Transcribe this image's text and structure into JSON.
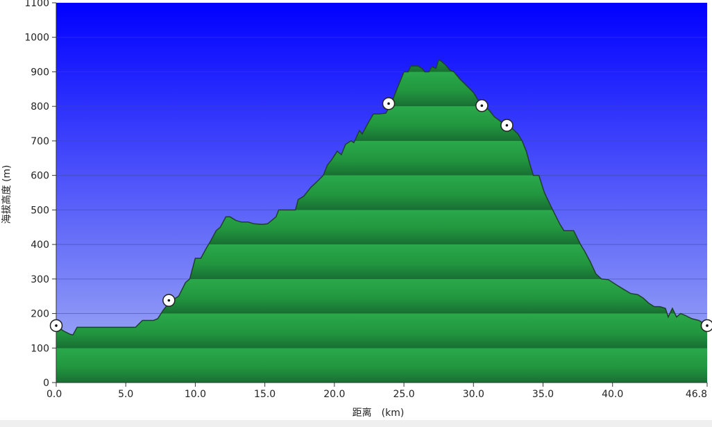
{
  "chart_data": {
    "type": "area",
    "title": "",
    "xlabel": "距离　(km)",
    "ylabel": "海拔高度 (m)",
    "xlim": [
      0,
      46.8
    ],
    "ylim": [
      0,
      1100
    ],
    "x_ticks": [
      {
        "value": 0,
        "label": "0.0"
      },
      {
        "value": 5,
        "label": "5.0"
      },
      {
        "value": 10,
        "label": "10.0"
      },
      {
        "value": 15,
        "label": "15.0"
      },
      {
        "value": 20,
        "label": "20.0"
      },
      {
        "value": 25,
        "label": "25.0"
      },
      {
        "value": 30,
        "label": "30.0"
      },
      {
        "value": 35,
        "label": "35.0"
      },
      {
        "value": 40,
        "label": "40.0"
      },
      {
        "value": 46.8,
        "label": "46.8"
      }
    ],
    "y_ticks": [
      {
        "value": 0,
        "label": "0"
      },
      {
        "value": 100,
        "label": "100"
      },
      {
        "value": 200,
        "label": "200"
      },
      {
        "value": 300,
        "label": "300"
      },
      {
        "value": 400,
        "label": "400"
      },
      {
        "value": 500,
        "label": "500"
      },
      {
        "value": 600,
        "label": "600"
      },
      {
        "value": 700,
        "label": "700"
      },
      {
        "value": 800,
        "label": "800"
      },
      {
        "value": 900,
        "label": "900"
      },
      {
        "value": 1000,
        "label": "1000"
      },
      {
        "value": 1100,
        "label": "1100"
      }
    ],
    "grid": true,
    "colors": {
      "fill_top": "#29a348",
      "fill_dark": "#1a7f3a",
      "outline": "#1f3f2a",
      "sky_top": "#0000ff",
      "sky_bottom": "#a7b4f4",
      "grid": "#3b4aa8"
    },
    "series": [
      {
        "values": [
          [
            0.0,
            165
          ],
          [
            0.5,
            150
          ],
          [
            1.0,
            140
          ],
          [
            1.2,
            138
          ],
          [
            1.5,
            160
          ],
          [
            2.0,
            160
          ],
          [
            3.0,
            160
          ],
          [
            4.0,
            160
          ],
          [
            5.0,
            160
          ],
          [
            5.7,
            160
          ],
          [
            6.2,
            180
          ],
          [
            7.0,
            180
          ],
          [
            7.3,
            185
          ],
          [
            7.7,
            210
          ],
          [
            8.2,
            235
          ],
          [
            8.8,
            250
          ],
          [
            9.3,
            290
          ],
          [
            9.6,
            300
          ],
          [
            10.0,
            360
          ],
          [
            10.4,
            360
          ],
          [
            10.8,
            390
          ],
          [
            11.1,
            410
          ],
          [
            11.5,
            440
          ],
          [
            11.8,
            450
          ],
          [
            12.2,
            480
          ],
          [
            12.5,
            480
          ],
          [
            12.9,
            470
          ],
          [
            13.3,
            465
          ],
          [
            13.8,
            465
          ],
          [
            14.2,
            460
          ],
          [
            14.8,
            458
          ],
          [
            15.2,
            460
          ],
          [
            15.5,
            470
          ],
          [
            15.8,
            480
          ],
          [
            16.0,
            500
          ],
          [
            16.5,
            500
          ],
          [
            17.2,
            500
          ],
          [
            17.4,
            530
          ],
          [
            17.8,
            540
          ],
          [
            18.3,
            565
          ],
          [
            18.7,
            580
          ],
          [
            19.2,
            600
          ],
          [
            19.5,
            630
          ],
          [
            19.8,
            645
          ],
          [
            20.2,
            670
          ],
          [
            20.5,
            660
          ],
          [
            20.8,
            690
          ],
          [
            21.2,
            700
          ],
          [
            21.4,
            695
          ],
          [
            21.8,
            730
          ],
          [
            22.0,
            720
          ],
          [
            22.4,
            750
          ],
          [
            22.8,
            778
          ],
          [
            23.2,
            778
          ],
          [
            23.7,
            780
          ],
          [
            24.1,
            810
          ],
          [
            24.5,
            850
          ],
          [
            24.8,
            880
          ],
          [
            25.0,
            900
          ],
          [
            25.3,
            900
          ],
          [
            25.5,
            917
          ],
          [
            26.0,
            917
          ],
          [
            26.3,
            910
          ],
          [
            26.5,
            900
          ],
          [
            26.8,
            900
          ],
          [
            27.0,
            915
          ],
          [
            27.3,
            910
          ],
          [
            27.5,
            935
          ],
          [
            27.7,
            930
          ],
          [
            28.0,
            920
          ],
          [
            28.3,
            905
          ],
          [
            28.6,
            900
          ],
          [
            29.0,
            880
          ],
          [
            29.5,
            860
          ],
          [
            30.0,
            840
          ],
          [
            30.3,
            820
          ],
          [
            30.7,
            800
          ],
          [
            31.1,
            790
          ],
          [
            31.5,
            770
          ],
          [
            32.0,
            755
          ],
          [
            32.4,
            745
          ],
          [
            32.8,
            735
          ],
          [
            33.2,
            720
          ],
          [
            33.5,
            700
          ],
          [
            33.8,
            670
          ],
          [
            34.0,
            640
          ],
          [
            34.3,
            600
          ],
          [
            34.7,
            600
          ],
          [
            35.1,
            550
          ],
          [
            35.7,
            500
          ],
          [
            36.2,
            460
          ],
          [
            36.5,
            440
          ],
          [
            37.2,
            440
          ],
          [
            37.7,
            400
          ],
          [
            38.0,
            380
          ],
          [
            38.4,
            350
          ],
          [
            38.8,
            315
          ],
          [
            39.2,
            300
          ],
          [
            39.7,
            298
          ],
          [
            40.2,
            285
          ],
          [
            40.8,
            270
          ],
          [
            41.3,
            258
          ],
          [
            41.8,
            255
          ],
          [
            42.2,
            245
          ],
          [
            42.6,
            230
          ],
          [
            43.0,
            220
          ],
          [
            43.4,
            220
          ],
          [
            43.8,
            215
          ],
          [
            44.0,
            190
          ],
          [
            44.3,
            215
          ],
          [
            44.6,
            190
          ],
          [
            44.9,
            200
          ],
          [
            45.2,
            195
          ],
          [
            45.7,
            185
          ],
          [
            46.2,
            180
          ],
          [
            46.8,
            165
          ]
        ]
      }
    ],
    "markers": [
      {
        "x": 0.0,
        "y": 165
      },
      {
        "x": 8.1,
        "y": 238
      },
      {
        "x": 23.9,
        "y": 808
      },
      {
        "x": 30.6,
        "y": 802
      },
      {
        "x": 32.4,
        "y": 745
      },
      {
        "x": 46.8,
        "y": 165
      }
    ]
  }
}
